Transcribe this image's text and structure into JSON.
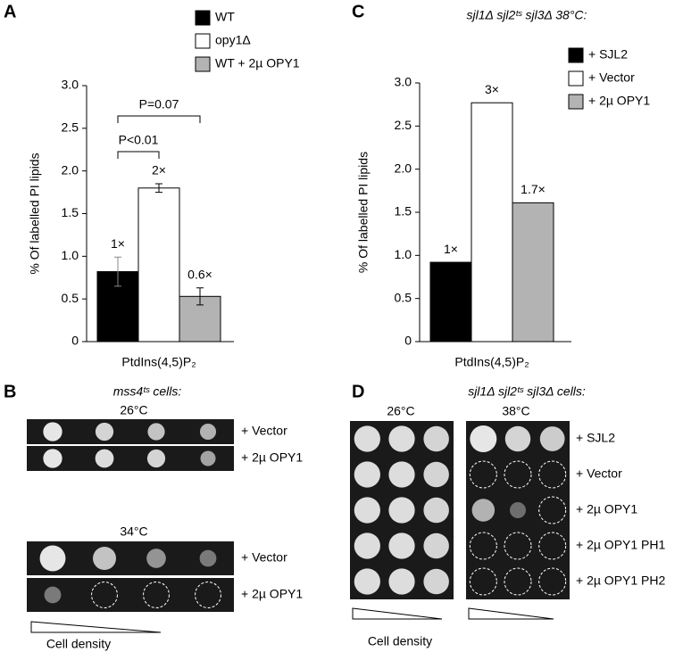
{
  "chart_data": [
    {
      "type": "bar",
      "ylabel": "% Of labelled PI lipids",
      "categories": [
        "PtdIns(4,5)P₂"
      ],
      "series": [
        {
          "name": "WT",
          "color": "#000000",
          "values": [
            0.82
          ],
          "errors": [
            0.17
          ]
        },
        {
          "name": "opy1Δ",
          "color": "#ffffff",
          "values": [
            1.8
          ],
          "errors": [
            0.05
          ]
        },
        {
          "name": "WT + 2µ OPY1",
          "color": "#b3b3b3",
          "values": [
            0.53
          ],
          "errors": [
            0.1
          ]
        }
      ],
      "fold_labels": [
        "1×",
        "2×",
        "0.6×"
      ],
      "comparisons": [
        "P<0.01",
        "P=0.07"
      ],
      "ylim": [
        0,
        3
      ],
      "yticks": [
        0,
        0.5,
        {
          "value": 1,
          "label": "1.0"
        },
        1.5,
        {
          "value": 2,
          "label": "2.0"
        },
        2.5,
        {
          "value": 3,
          "label": "3.0"
        }
      ]
    },
    {
      "type": "bar",
      "title": "sjl1Δ sjl2ᵗˢ sjl3Δ 38°C:",
      "ylabel": "% Of labelled PI lipids",
      "categories": [
        "PtdIns(4,5)P₂"
      ],
      "series": [
        {
          "name": "+ SJL2",
          "color": "#000000",
          "values": [
            0.92
          ]
        },
        {
          "name": "+ Vector",
          "color": "#ffffff",
          "values": [
            2.77
          ]
        },
        {
          "name": "+ 2µ OPY1",
          "color": "#b3b3b3",
          "values": [
            1.61
          ]
        }
      ],
      "fold_labels": [
        "1×",
        "3×",
        "1.7×"
      ],
      "ylim": [
        0,
        3
      ],
      "yticks": [
        0,
        0.5,
        {
          "value": 1,
          "label": "1.0"
        },
        1.5,
        {
          "value": 2,
          "label": "2.0"
        },
        2.5,
        {
          "value": 3,
          "label": "3.0"
        }
      ]
    }
  ],
  "panel_letters": [
    "A",
    "B",
    "C",
    "D"
  ],
  "spot_assays": [
    {
      "title": "mss4ᵗˢ cells:",
      "temperatures": [
        "26°C",
        "34°C"
      ],
      "rows": [
        "+ Vector",
        "+ 2µ OPY1",
        "+ Vector",
        "+ 2µ OPY1"
      ],
      "xlabel": "Cell density"
    },
    {
      "title": "sjl1Δ sjl2ᵗˢ sjl3Δ cells:",
      "temperatures": [
        "26°C",
        "38°C"
      ],
      "rows": [
        "+ SJL2",
        "+ Vector",
        "+ 2µ OPY1",
        "+ 2µ OPY1 PH1",
        "+ 2µ OPY1 PH2"
      ],
      "xlabel": "Cell density"
    }
  ]
}
